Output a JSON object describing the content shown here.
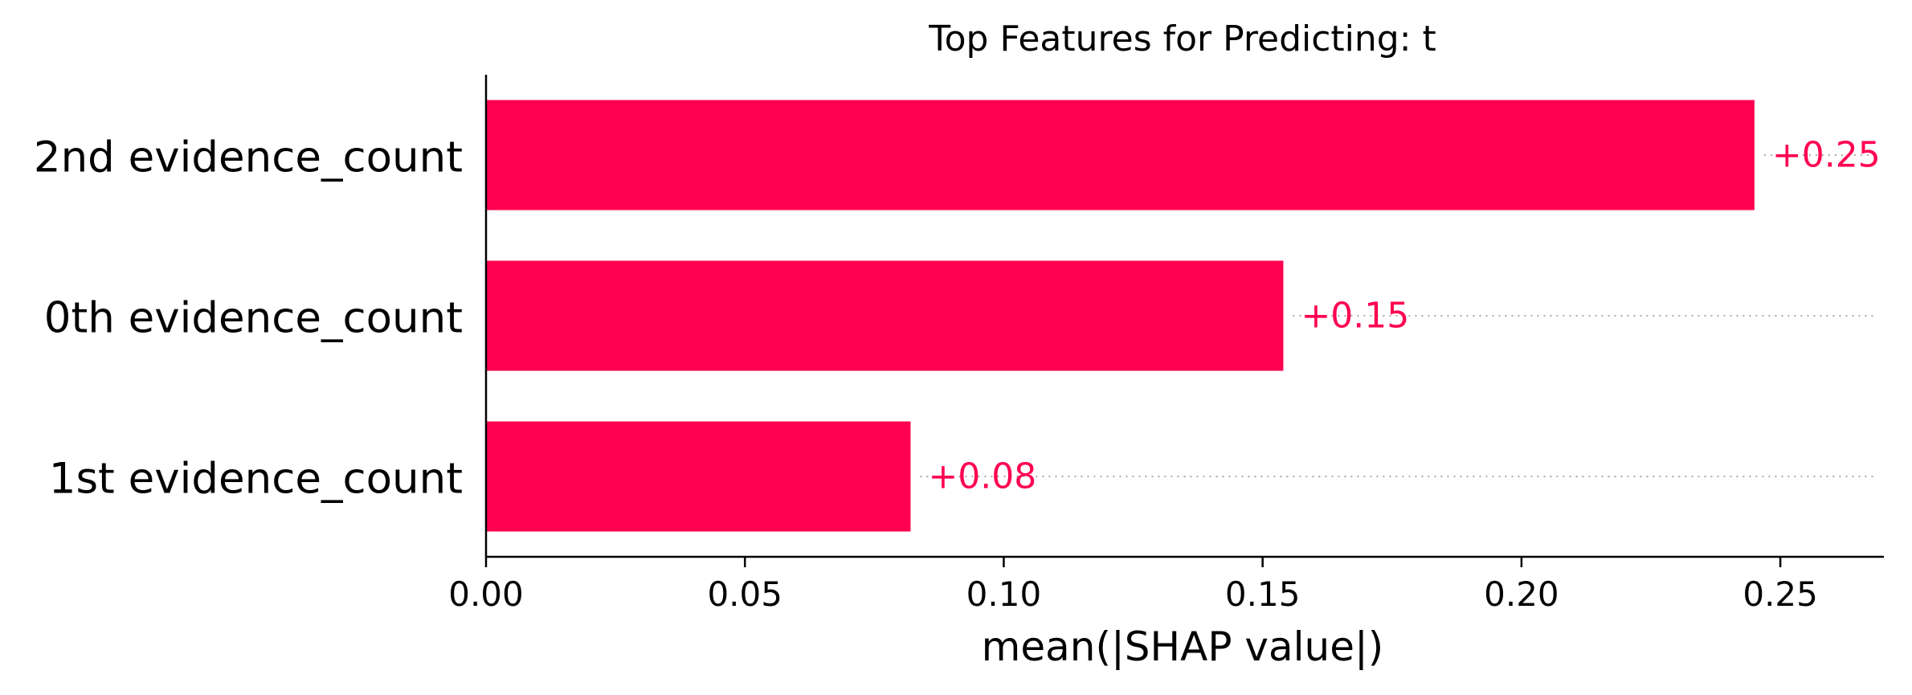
{
  "chart_data": {
    "type": "bar",
    "orientation": "horizontal",
    "title": "Top Features for Predicting: t",
    "xlabel": "mean(|SHAP value|)",
    "ylabel": "",
    "categories": [
      "2nd evidence_count",
      "0th evidence_count",
      "1st evidence_count"
    ],
    "values": [
      0.245,
      0.154,
      0.082
    ],
    "value_labels": [
      "+0.25",
      "+0.15",
      "+0.08"
    ],
    "xlim": [
      0,
      0.27
    ],
    "xticks": [
      0.0,
      0.05,
      0.1,
      0.15,
      0.2,
      0.25
    ],
    "xtick_labels": [
      "0.00",
      "0.05",
      "0.10",
      "0.15",
      "0.20",
      "0.25"
    ],
    "grid": false,
    "legend": "none",
    "bar_color": "#ff0051"
  }
}
